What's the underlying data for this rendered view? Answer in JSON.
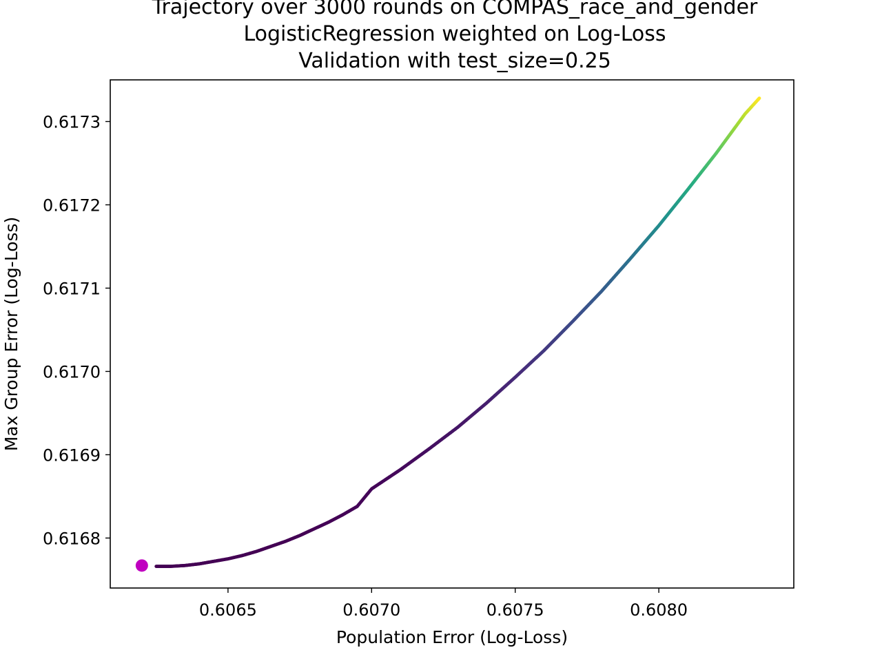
{
  "chart_data": {
    "type": "scatter",
    "title_lines": [
      "Trajectory over 3000 rounds on COMPAS_race_and_gender",
      "LogisticRegression weighted on Log-Loss",
      "Validation with test_size=0.25"
    ],
    "xlabel": "Population Error (Log-Loss)",
    "ylabel": "Max Group Error (Log-Loss)",
    "xlim": [
      0.60609,
      0.60847
    ],
    "ylim": [
      0.61674,
      0.61735
    ],
    "xticks": [
      0.6065,
      0.607,
      0.6075,
      0.608
    ],
    "xtick_labels": [
      "0.6065",
      "0.6070",
      "0.6075",
      "0.6080"
    ],
    "yticks": [
      0.6168,
      0.6169,
      0.617,
      0.6171,
      0.6172,
      0.6173
    ],
    "ytick_labels": [
      "0.6168",
      "0.6169",
      "0.6170",
      "0.6171",
      "0.6172",
      "0.6173"
    ],
    "colormap": "viridis",
    "rounds": 3000,
    "grid": false,
    "legend": "none",
    "series": [
      {
        "x": [
          0.60625,
          0.6063,
          0.60635,
          0.6064,
          0.60645,
          0.6065,
          0.60655,
          0.6066,
          0.60665,
          0.6067,
          0.60675,
          0.6068,
          0.60685,
          0.6069,
          0.60695,
          0.607,
          0.6071,
          0.6072,
          0.6073,
          0.6074,
          0.6075,
          0.6076,
          0.6077,
          0.6078,
          0.6079,
          0.608,
          0.6081,
          0.6082,
          0.6083,
          0.60835
        ],
        "y": [
          0.616766,
          0.616766,
          0.616767,
          0.616769,
          0.616772,
          0.616775,
          0.616779,
          0.616784,
          0.61679,
          0.616796,
          0.616803,
          0.616811,
          0.616819,
          0.616828,
          0.616838,
          0.616859,
          0.616882,
          0.616907,
          0.616933,
          0.616962,
          0.616993,
          0.617025,
          0.61706,
          0.617096,
          0.617135,
          0.617175,
          0.617218,
          0.617262,
          0.617309,
          0.617328
        ]
      }
    ],
    "start_marker": {
      "x": 0.6062,
      "y": 0.616767,
      "color": "#c000c0"
    }
  }
}
